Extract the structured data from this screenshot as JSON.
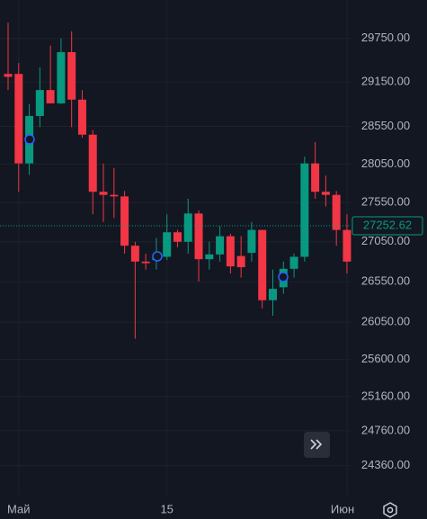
{
  "chart_data": {
    "type": "candlestick",
    "log_scale": true,
    "grid": true,
    "up_color": "#089981",
    "down_color": "#f23645",
    "categories": [
      null,
      "Май",
      null,
      null,
      null,
      null,
      null,
      null,
      null,
      null,
      null,
      null,
      null,
      null,
      null,
      "15",
      null,
      null,
      null,
      null,
      null,
      null,
      null,
      null,
      null,
      null,
      null,
      null,
      null,
      null,
      null,
      null,
      "Июн"
    ],
    "open": [
      29260,
      29260,
      28060,
      28690,
      29040,
      28860,
      29560,
      28910,
      28440,
      27690,
      27650,
      27630,
      27000,
      26800,
      26820,
      26860,
      27170,
      27050,
      27410,
      26830,
      26890,
      27120,
      26870,
      26910,
      27200,
      26320,
      26480,
      26710,
      26860,
      28060,
      27690,
      27650,
      27200
    ],
    "high": [
      29970,
      29410,
      28850,
      29350,
      29650,
      29750,
      29850,
      29040,
      28500,
      28060,
      28000,
      27700,
      27050,
      26900,
      27100,
      27400,
      27200,
      27600,
      27450,
      27050,
      27250,
      27150,
      27120,
      27300,
      27200,
      26700,
      26800,
      26900,
      28150,
      28340,
      27900,
      27700,
      27400
    ],
    "low": [
      29040,
      27690,
      27910,
      28540,
      28860,
      28850,
      28540,
      28400,
      27400,
      27300,
      27350,
      26900,
      25850,
      26700,
      26700,
      26820,
      26980,
      26900,
      26550,
      26700,
      26800,
      26650,
      26600,
      26800,
      26220,
      26130,
      26400,
      26600,
      26800,
      27600,
      27500,
      27000,
      26650
    ],
    "close": [
      29220,
      28060,
      28690,
      29040,
      28860,
      29560,
      28910,
      28440,
      27690,
      27650,
      27630,
      27000,
      26800,
      26780,
      26860,
      27170,
      27050,
      27410,
      26830,
      26890,
      27120,
      26740,
      26730,
      27200,
      26320,
      26460,
      26710,
      26860,
      28060,
      27690,
      27650,
      27200,
      26800
    ],
    "ylim": [
      24030,
      30290
    ],
    "yticks": [
      {
        "value": 29750,
        "label": "29750.00"
      },
      {
        "value": 29150,
        "label": "29150.00"
      },
      {
        "value": 28550,
        "label": "28550.00"
      },
      {
        "value": 28050,
        "label": "28050.00"
      },
      {
        "value": 27550,
        "label": "27550.00"
      },
      {
        "value": 27050,
        "label": "27050.00"
      },
      {
        "value": 26550,
        "label": "26550.00"
      },
      {
        "value": 26050,
        "label": "26050.00"
      },
      {
        "value": 25600,
        "label": "25600.00"
      },
      {
        "value": 25160,
        "label": "25160.00"
      },
      {
        "value": 24760,
        "label": "24760.00"
      },
      {
        "value": 24360,
        "label": "24360.00"
      }
    ],
    "last_price": 27252.62
  }
}
